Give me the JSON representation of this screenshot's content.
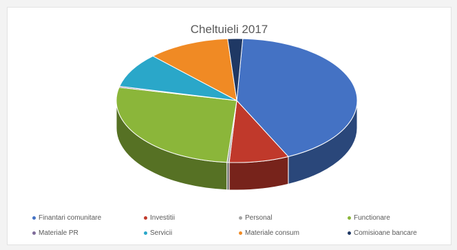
{
  "chart_data": {
    "type": "pie",
    "title": "Cheltuieli 2017",
    "slices": [
      {
        "label": "Finantari comunitare",
        "value": 42,
        "color": "#4472c4"
      },
      {
        "label": "Investitii",
        "value": 8,
        "color": "#c0392b"
      },
      {
        "label": "Personal",
        "value": 0.3,
        "color": "#a5a5a5"
      },
      {
        "label": "Functionare",
        "value": 27,
        "color": "#8bb63a"
      },
      {
        "label": "Materiale PR",
        "value": 0.3,
        "color": "#7f6b99"
      },
      {
        "label": "Servicii",
        "value": 9,
        "color": "#2aa7c9"
      },
      {
        "label": "Materiale consum",
        "value": 11,
        "color": "#f08a24"
      },
      {
        "label": "Comisioane bancare",
        "value": 2,
        "color": "#1f3864"
      }
    ],
    "legend_position": "bottom",
    "style": "3d"
  }
}
